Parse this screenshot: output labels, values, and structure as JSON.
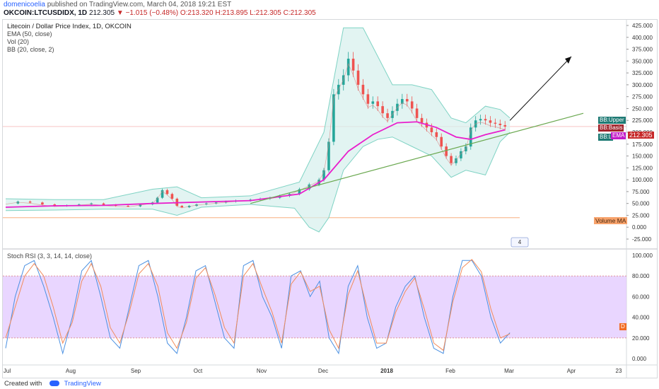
{
  "header": {
    "author": "domenicoelia",
    "published_text": "published on TradingView.com, March 04, 2018 19:21 EST",
    "symbol": "OKCOIN:LTCUSDIDX, 1D",
    "last": "212.305",
    "change": "−1.015 (−0.48%)",
    "open": "O:213.320",
    "high": "H:213.895",
    "low": "L:212.305",
    "close": "C:212.305"
  },
  "legend": {
    "title": "Litecoin / Dollar Price Index, 1D, OKCOIN",
    "ema": "EMA (50, close)",
    "vol": "Vol (20)",
    "bb": "BB (20, close, 2)"
  },
  "rsi_legend": "Stoch RSI (3, 3, 14, 14, close)",
  "tags": {
    "bb_upper": "BB:Upper",
    "bb_basis": "BB:Basis",
    "bb_lower": "BB:L",
    "ema": "EMA",
    "price": "212.305",
    "volume_ma": "Volume MA",
    "d_marker": "D",
    "event_marker": "4"
  },
  "footer": {
    "created_with": "Created with",
    "brand": "TradingView"
  },
  "colors": {
    "up": "#26a69a",
    "down": "#ef5350",
    "ema": "#e91ecc",
    "bb_band": "#7fd3c4",
    "bb_fill": "#d5f0ec",
    "basis": "#d98080",
    "trend": "#6aa84f",
    "rsi_fill": "#e1c8ff",
    "k_line": "#4a90e2",
    "d_line": "#f28b5a"
  },
  "chart_data": [
    {
      "type": "candlestick",
      "title": "Litecoin / Dollar Price Index, 1D, OKCOIN",
      "y_ticks": [
        "425.000",
        "400.000",
        "375.000",
        "350.000",
        "325.000",
        "300.000",
        "275.000",
        "250.000",
        "225.000",
        "200.000",
        "175.000",
        "150.000",
        "125.000",
        "100.000",
        "75.000",
        "50.000",
        "25.000",
        "0.000",
        "-25.000"
      ],
      "x_ticks": [
        "Jul",
        "Aug",
        "Sep",
        "Oct",
        "Nov",
        "Dec",
        "2018",
        "Feb",
        "Mar",
        "Apr",
        "23"
      ],
      "ylim": [
        -25,
        425
      ],
      "close_series": [
        [
          0,
          50
        ],
        [
          5,
          54
        ],
        [
          10,
          52
        ],
        [
          15,
          48
        ],
        [
          20,
          45
        ],
        [
          25,
          46
        ],
        [
          30,
          48
        ],
        [
          35,
          50
        ],
        [
          40,
          47
        ],
        [
          45,
          45
        ],
        [
          50,
          44
        ],
        [
          55,
          48
        ],
        [
          60,
          52
        ],
        [
          62,
          62
        ],
        [
          64,
          78
        ],
        [
          66,
          70
        ],
        [
          68,
          60
        ],
        [
          70,
          45
        ],
        [
          72,
          42
        ],
        [
          75,
          45
        ],
        [
          78,
          48
        ],
        [
          82,
          50
        ],
        [
          86,
          52
        ],
        [
          90,
          54
        ],
        [
          94,
          56
        ],
        [
          100,
          58
        ],
        [
          104,
          60
        ],
        [
          108,
          62
        ],
        [
          112,
          66
        ],
        [
          116,
          70
        ],
        [
          120,
          80
        ],
        [
          124,
          90
        ],
        [
          128,
          100
        ],
        [
          130,
          120
        ],
        [
          132,
          180
        ],
        [
          134,
          280
        ],
        [
          136,
          300
        ],
        [
          138,
          320
        ],
        [
          140,
          355
        ],
        [
          142,
          330
        ],
        [
          144,
          300
        ],
        [
          146,
          280
        ],
        [
          148,
          260
        ],
        [
          150,
          265
        ],
        [
          152,
          255
        ],
        [
          154,
          240
        ],
        [
          156,
          230
        ],
        [
          158,
          245
        ],
        [
          160,
          260
        ],
        [
          162,
          270
        ],
        [
          164,
          265
        ],
        [
          166,
          250
        ],
        [
          168,
          230
        ],
        [
          170,
          220
        ],
        [
          172,
          210
        ],
        [
          174,
          200
        ],
        [
          176,
          190
        ],
        [
          178,
          170
        ],
        [
          180,
          150
        ],
        [
          182,
          135
        ],
        [
          184,
          145
        ],
        [
          186,
          160
        ],
        [
          188,
          170
        ],
        [
          190,
          210
        ],
        [
          192,
          225
        ],
        [
          194,
          228
        ],
        [
          196,
          225
        ],
        [
          198,
          220
        ],
        [
          200,
          218
        ],
        [
          202,
          215
        ],
        [
          204,
          212
        ]
      ],
      "ema_series": [
        [
          0,
          42
        ],
        [
          20,
          45
        ],
        [
          40,
          46
        ],
        [
          60,
          50
        ],
        [
          80,
          53
        ],
        [
          100,
          56
        ],
        [
          120,
          70
        ],
        [
          130,
          100
        ],
        [
          140,
          160
        ],
        [
          150,
          195
        ],
        [
          160,
          220
        ],
        [
          168,
          222
        ],
        [
          176,
          210
        ],
        [
          184,
          190
        ],
        [
          190,
          185
        ],
        [
          196,
          195
        ],
        [
          204,
          205
        ]
      ],
      "bb_upper": [
        [
          0,
          60
        ],
        [
          20,
          58
        ],
        [
          40,
          58
        ],
        [
          60,
          80
        ],
        [
          70,
          85
        ],
        [
          80,
          62
        ],
        [
          100,
          66
        ],
        [
          120,
          95
        ],
        [
          130,
          200
        ],
        [
          138,
          420
        ],
        [
          146,
          420
        ],
        [
          152,
          360
        ],
        [
          158,
          300
        ],
        [
          166,
          300
        ],
        [
          174,
          290
        ],
        [
          182,
          230
        ],
        [
          188,
          220
        ],
        [
          196,
          255
        ],
        [
          202,
          248
        ],
        [
          206,
          230
        ]
      ],
      "bb_lower": [
        [
          0,
          35
        ],
        [
          20,
          36
        ],
        [
          40,
          38
        ],
        [
          60,
          38
        ],
        [
          70,
          25
        ],
        [
          80,
          42
        ],
        [
          100,
          48
        ],
        [
          118,
          40
        ],
        [
          124,
          0
        ],
        [
          128,
          -10
        ],
        [
          132,
          20
        ],
        [
          138,
          120
        ],
        [
          146,
          170
        ],
        [
          152,
          185
        ],
        [
          158,
          190
        ],
        [
          166,
          170
        ],
        [
          174,
          150
        ],
        [
          182,
          105
        ],
        [
          188,
          120
        ],
        [
          196,
          110
        ],
        [
          202,
          180
        ],
        [
          206,
          200
        ]
      ],
      "trendline": [
        [
          100,
          50
        ],
        [
          210,
          240
        ]
      ],
      "annotations": [
        "Volume MA",
        "trendline",
        "projection arrow"
      ]
    },
    {
      "type": "line",
      "title": "Stoch RSI (3, 3, 14, 14, close)",
      "y_ticks": [
        "100.000",
        "80.000",
        "60.000",
        "40.000",
        "20.000",
        "0.000"
      ],
      "ylim": [
        0,
        100
      ],
      "bands": [
        20,
        80
      ],
      "series": [
        {
          "name": "K",
          "values": [
            10,
            60,
            90,
            95,
            70,
            40,
            5,
            40,
            85,
            95,
            60,
            20,
            10,
            50,
            90,
            95,
            60,
            15,
            5,
            40,
            85,
            90,
            55,
            20,
            10,
            90,
            95,
            60,
            40,
            10,
            80,
            85,
            60,
            75,
            20,
            5,
            70,
            90,
            40,
            10,
            15,
            50,
            70,
            80,
            40,
            10,
            5,
            60,
            95,
            95,
            80,
            40,
            15,
            25
          ]
        },
        {
          "name": "D",
          "values": [
            20,
            50,
            80,
            92,
            80,
            50,
            15,
            35,
            75,
            92,
            70,
            30,
            15,
            45,
            82,
            92,
            70,
            25,
            10,
            35,
            78,
            88,
            62,
            30,
            15,
            80,
            92,
            68,
            45,
            15,
            72,
            84,
            65,
            70,
            28,
            10,
            62,
            85,
            48,
            15,
            15,
            45,
            65,
            78,
            48,
            15,
            8,
            55,
            88,
            96,
            84,
            48,
            20,
            24
          ]
        }
      ]
    }
  ]
}
